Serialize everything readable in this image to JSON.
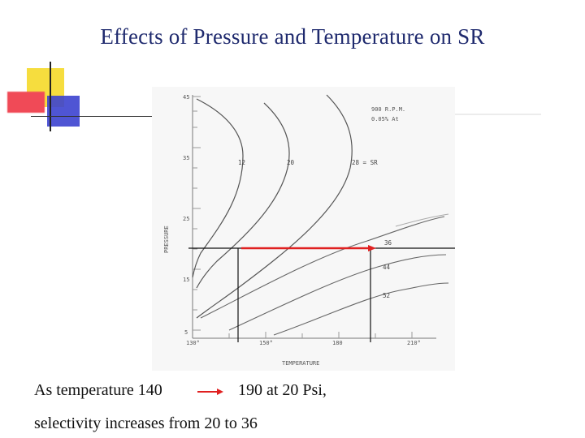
{
  "slide": {
    "title": "Effects of Pressure and Temperature on SR"
  },
  "caption": {
    "line1_left": "As temperature 140",
    "line1_right": "190 at 20 Psi,",
    "line2": "selectivity increases from 20 to 36",
    "arrow_color": "#e02020"
  },
  "figure": {
    "ylabel": "PRESSURE",
    "xlabel": "TEMPERATURE",
    "conditions": [
      "900 R.P.M.",
      "0.05% At"
    ],
    "y_ticks": [
      "45",
      "35",
      "25",
      "15",
      "5"
    ],
    "x_ticks": [
      "130°",
      "150°",
      "180",
      "210°"
    ],
    "curve_labels": [
      "12",
      "20",
      "28 = SR",
      "36",
      "44",
      "52"
    ],
    "highlight_color": "#e02020"
  }
}
